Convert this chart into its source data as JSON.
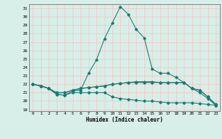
{
  "title": "",
  "xlabel": "Humidex (Indice chaleur)",
  "ylabel": "",
  "xlim": [
    -0.5,
    23.5
  ],
  "ylim": [
    18.8,
    31.5
  ],
  "yticks": [
    19,
    20,
    21,
    22,
    23,
    24,
    25,
    26,
    27,
    28,
    29,
    30,
    31
  ],
  "xticks": [
    0,
    1,
    2,
    3,
    4,
    5,
    6,
    7,
    8,
    9,
    10,
    11,
    12,
    13,
    14,
    15,
    16,
    17,
    18,
    19,
    20,
    21,
    22,
    23
  ],
  "bg_color": "#d8eee8",
  "grid_color": "#f0c8c8",
  "line_color": "#1a7a6e",
  "lines": [
    [
      22,
      21.8,
      21.5,
      20.8,
      20.7,
      21.2,
      21.3,
      23.3,
      24.9,
      27.4,
      29.3,
      31.2,
      30.3,
      28.5,
      27.5,
      23.8,
      23.3,
      23.3,
      22.8,
      22.2,
      21.5,
      21.3,
      20.5,
      19.6
    ],
    [
      22,
      21.8,
      21.5,
      21.0,
      21.0,
      21.3,
      21.5,
      21.6,
      21.7,
      21.8,
      22.0,
      22.1,
      22.2,
      22.2,
      22.2,
      22.2,
      22.2,
      22.2,
      22.2,
      22.2,
      21.5,
      21.3,
      20.5,
      19.6
    ],
    [
      22,
      21.8,
      21.5,
      20.8,
      20.7,
      21.0,
      21.0,
      21.0,
      21.0,
      21.0,
      20.5,
      20.3,
      20.2,
      20.1,
      20.0,
      20.0,
      19.9,
      19.8,
      19.8,
      19.8,
      19.8,
      19.7,
      19.6,
      19.5
    ],
    [
      22,
      21.8,
      21.5,
      21.0,
      21.0,
      21.3,
      21.5,
      21.6,
      21.7,
      21.8,
      22.0,
      22.1,
      22.2,
      22.3,
      22.3,
      22.3,
      22.2,
      22.2,
      22.2,
      22.2,
      21.5,
      21.0,
      20.3,
      19.5
    ]
  ]
}
